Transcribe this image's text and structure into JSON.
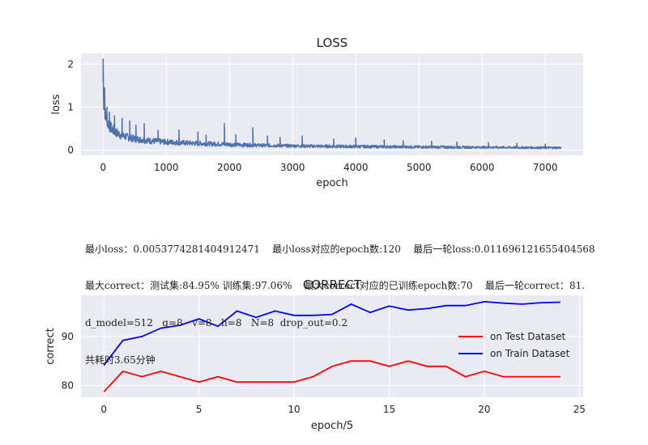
{
  "colors": {
    "loss_line": "#4c72b0",
    "test_line": "#ff0000",
    "train_line": "#0000ff",
    "axes_bg": "#eaeaf2",
    "grid": "#ffffff"
  },
  "info_lines": [
    "最小loss：0.0053774281404912471    最小loss对应的epoch数:120    最后一轮loss:0.011696121655404568",
    "最大correct：测试集:84.95% 训练集:97.06%    最大correct对应的已训练epoch数:70    最后一轮correct：81.",
    "d_model=512   q=8   v=8   h=8   N=8  drop_out=0.2",
    "共耗时3.65分钟"
  ],
  "chart_data": [
    {
      "type": "line",
      "title": "LOSS",
      "xlabel": "epoch",
      "ylabel": "loss",
      "xlim": [
        -350,
        7600
      ],
      "ylim": [
        -0.12,
        2.25
      ],
      "xticks": [
        0,
        1000,
        2000,
        3000,
        4000,
        5000,
        6000,
        7000
      ],
      "yticks": [
        0,
        1,
        2
      ],
      "grid": true,
      "x_range": [
        0,
        7250
      ],
      "series": [
        {
          "x": [
            0,
            10,
            30,
            60,
            100,
            150,
            200,
            300,
            400,
            500,
            600,
            800,
            1000,
            1200,
            1500,
            1800,
            2000,
            2200,
            2500,
            3000,
            3500,
            4000,
            4500,
            5000,
            5500,
            6000,
            6500,
            7000,
            7250
          ],
          "baseline": [
            1.5,
            1.05,
            0.82,
            0.65,
            0.52,
            0.44,
            0.38,
            0.31,
            0.27,
            0.24,
            0.22,
            0.19,
            0.17,
            0.16,
            0.14,
            0.13,
            0.12,
            0.11,
            0.1,
            0.09,
            0.08,
            0.075,
            0.07,
            0.065,
            0.06,
            0.06,
            0.055,
            0.05,
            0.05
          ],
          "band": [
            0.6,
            0.45,
            0.35,
            0.3,
            0.28,
            0.26,
            0.22,
            0.2,
            0.18,
            0.16,
            0.15,
            0.14,
            0.13,
            0.12,
            0.11,
            0.1,
            0.1,
            0.09,
            0.08,
            0.07,
            0.07,
            0.07,
            0.06,
            0.06,
            0.06,
            0.05,
            0.05,
            0.05,
            0.05
          ],
          "peaks": [
            [
              0,
              2.12
            ],
            [
              25,
              1.45
            ],
            [
              60,
              1.0
            ],
            [
              100,
              0.88
            ],
            [
              180,
              0.8
            ],
            [
              300,
              0.74
            ],
            [
              420,
              0.68
            ],
            [
              520,
              0.58
            ],
            [
              650,
              0.62
            ],
            [
              870,
              0.46
            ],
            [
              1200,
              0.47
            ],
            [
              1500,
              0.42
            ],
            [
              1630,
              0.35
            ],
            [
              1920,
              0.62
            ],
            [
              2100,
              0.36
            ],
            [
              2370,
              0.52
            ],
            [
              2600,
              0.33
            ],
            [
              2800,
              0.3
            ],
            [
              3150,
              0.33
            ],
            [
              3650,
              0.26
            ],
            [
              4000,
              0.28
            ],
            [
              4450,
              0.24
            ],
            [
              4750,
              0.22
            ],
            [
              5200,
              0.21
            ],
            [
              5600,
              0.19
            ],
            [
              6100,
              0.18
            ],
            [
              6550,
              0.16
            ],
            [
              7000,
              0.14
            ]
          ]
        }
      ]
    },
    {
      "type": "line",
      "title": "CORRECT",
      "xlabel": "epoch/5",
      "ylabel": "correct",
      "xlim": [
        -1.2,
        25.2
      ],
      "ylim": [
        77.6,
        98.4
      ],
      "xticks": [
        0,
        5,
        10,
        15,
        20,
        25
      ],
      "yticks": [
        80,
        90
      ],
      "grid": true,
      "legend": "right",
      "x": [
        0,
        1,
        2,
        3,
        4,
        5,
        6,
        7,
        8,
        9,
        10,
        11,
        12,
        13,
        14,
        15,
        16,
        17,
        18,
        19,
        20,
        21,
        22,
        23,
        24
      ],
      "series": [
        {
          "name": "on Test Dataset",
          "values": [
            78.7,
            82.9,
            81.8,
            82.9,
            81.8,
            80.7,
            81.8,
            80.7,
            80.7,
            80.7,
            80.7,
            81.8,
            83.9,
            85.0,
            85.0,
            83.9,
            85.0,
            83.9,
            83.9,
            81.8,
            82.9,
            81.8,
            81.8,
            81.8,
            81.8
          ]
        },
        {
          "name": "on Train Dataset",
          "values": [
            84.1,
            89.2,
            90.0,
            91.7,
            92.3,
            93.6,
            92.1,
            95.2,
            93.9,
            95.2,
            94.3,
            94.3,
            94.5,
            96.6,
            94.9,
            96.2,
            95.4,
            95.7,
            96.3,
            96.3,
            97.1,
            96.8,
            96.6,
            96.9,
            97.0
          ]
        }
      ]
    }
  ]
}
